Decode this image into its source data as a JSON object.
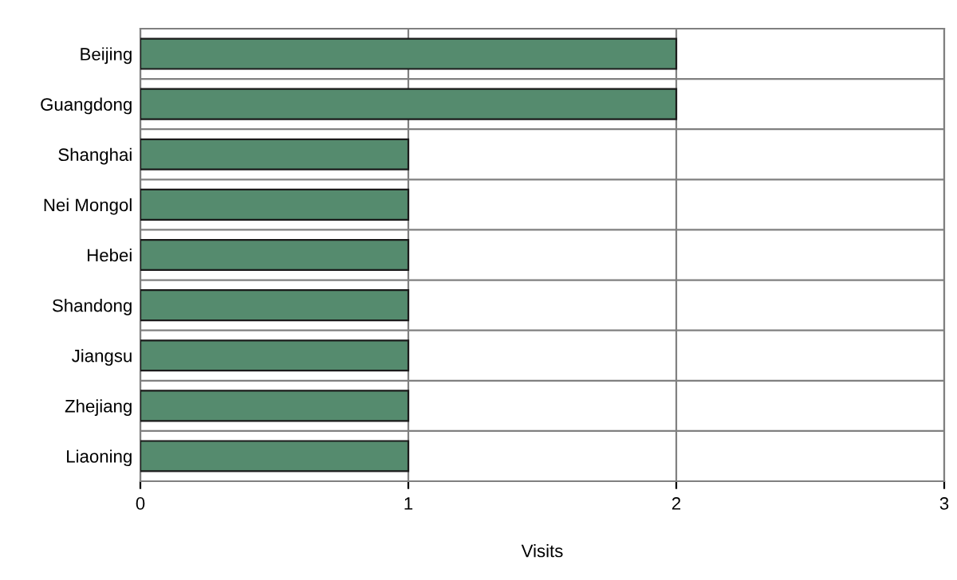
{
  "chart_data": {
    "type": "bar",
    "orientation": "horizontal",
    "xlabel": "Visits",
    "categories": [
      "Beijing",
      "Guangdong",
      "Shanghai",
      "Nei Mongol",
      "Hebei",
      "Shandong",
      "Jiangsu",
      "Zhejiang",
      "Liaoning"
    ],
    "values": [
      2,
      2,
      1,
      1,
      1,
      1,
      1,
      1,
      1
    ],
    "color": "#558b6e",
    "xlim": [
      0,
      3
    ],
    "xticks": [
      0,
      1,
      2,
      3
    ],
    "grid": true,
    "legend": false
  }
}
